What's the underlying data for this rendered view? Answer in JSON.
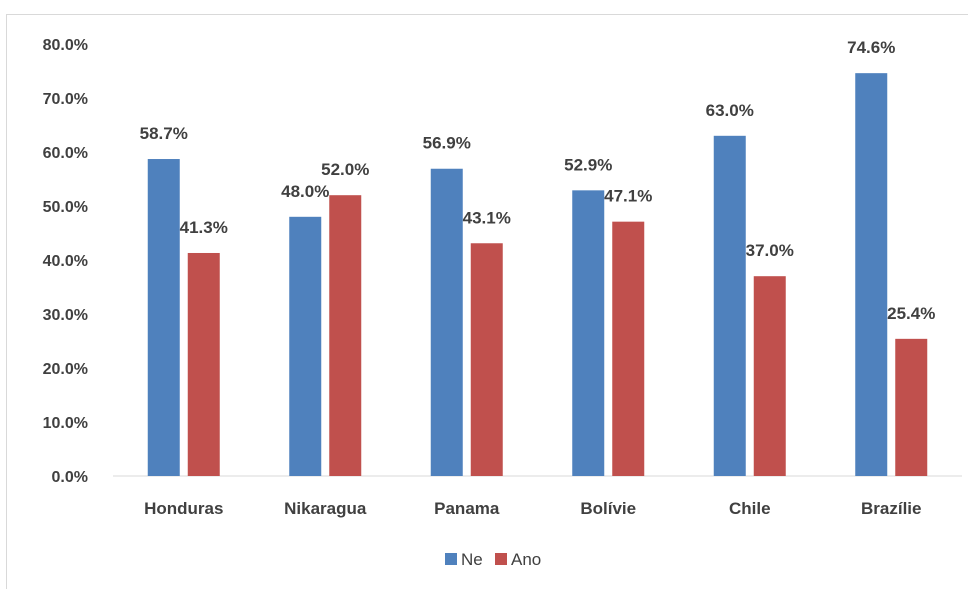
{
  "chart_data": {
    "type": "bar",
    "categories": [
      "Honduras",
      "Nikaragua",
      "Panama",
      "Bolívie",
      "Chile",
      "Brazílie"
    ],
    "series": [
      {
        "name": "Ne",
        "color": "#4f81bd",
        "values": [
          58.7,
          48.0,
          56.9,
          52.9,
          63.0,
          74.6
        ],
        "labels": [
          "58.7%",
          "48.0%",
          "56.9%",
          "52.9%",
          "63.0%",
          "74.6%"
        ]
      },
      {
        "name": "Ano",
        "color": "#c0504d",
        "values": [
          41.3,
          52.0,
          43.1,
          47.1,
          37.0,
          25.4
        ],
        "labels": [
          "41.3%",
          "52.0%",
          "43.1%",
          "47.1%",
          "37.0%",
          "25.4%"
        ]
      }
    ],
    "yticks": [
      "0.0%",
      "10.0%",
      "20.0%",
      "30.0%",
      "40.0%",
      "50.0%",
      "60.0%",
      "70.0%",
      "80.0%"
    ],
    "ylim": [
      0,
      80
    ],
    "grid": false,
    "legend": "bottom"
  }
}
